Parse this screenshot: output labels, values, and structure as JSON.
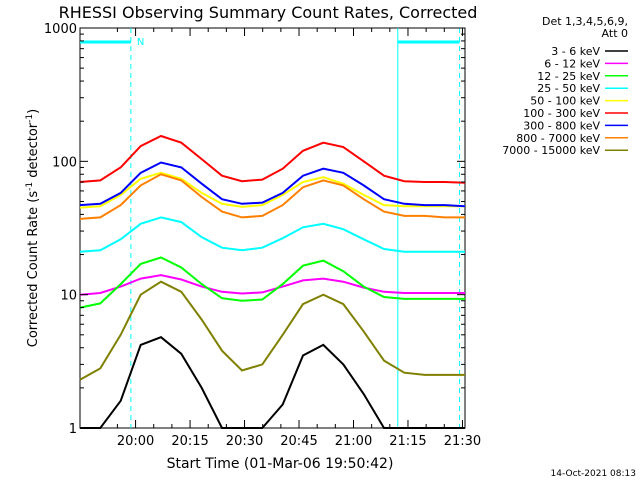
{
  "chart_data": {
    "type": "line",
    "title": "RHESSI Observing Summary Count Rates, Corrected",
    "xlabel": "Start Time (01-Mar-06 19:50:42)",
    "ylabel_parts": {
      "base": "Corrected Count Rate (s",
      "sup1": "-1",
      "mid": " detector",
      "sup2": "-1",
      "end": ")"
    },
    "y_scale": "log",
    "ylim": [
      1,
      1000
    ],
    "xlim_minutes": [
      -6,
      100
    ],
    "x_ticks": [
      {
        "label": "20:00",
        "minutes": 9.3
      },
      {
        "label": "20:15",
        "minutes": 24.3
      },
      {
        "label": "20:30",
        "minutes": 39.3
      },
      {
        "label": "20:45",
        "minutes": 54.3
      },
      {
        "label": "21:00",
        "minutes": 69.3
      },
      {
        "label": "21:15",
        "minutes": 84.3
      },
      {
        "label": "21:30",
        "minutes": 99.3
      }
    ],
    "y_ticks": [
      {
        "label": "1",
        "value": 1
      },
      {
        "label": "10",
        "value": 10
      },
      {
        "label": "100",
        "value": 100
      },
      {
        "label": "1000",
        "value": 1000
      }
    ],
    "legend_header": [
      "Det 1,3,4,5,6,9,",
      "Att 0"
    ],
    "series": [
      {
        "name": "3 - 6 keV",
        "color": "#000000",
        "values": [
          1,
          1,
          1.6,
          4.2,
          4.8,
          3.6,
          2.0,
          1,
          1,
          1,
          1.5,
          3.5,
          4.2,
          3.0,
          1.8,
          1,
          1,
          1,
          1,
          1
        ]
      },
      {
        "name": "6 - 12 keV",
        "color": "#ff00ff",
        "values": [
          10,
          10.3,
          11.5,
          13.2,
          14.0,
          13.0,
          11.5,
          10.5,
          10.2,
          10.4,
          11.5,
          12.8,
          13.2,
          12.5,
          11.3,
          10.5,
          10.3,
          10.3,
          10.3,
          10.3
        ]
      },
      {
        "name": "12 - 25 keV",
        "color": "#00ff00",
        "values": [
          8,
          8.6,
          12,
          17,
          19,
          16,
          12,
          9.4,
          9,
          9.2,
          12,
          16.5,
          18,
          15,
          11.5,
          9.6,
          9.3,
          9.3,
          9.3,
          9.3
        ]
      },
      {
        "name": "25 - 50 keV",
        "color": "#00ffff",
        "values": [
          21,
          21.5,
          26,
          34,
          38,
          35,
          27,
          22.5,
          21.5,
          22.5,
          26.5,
          32,
          34,
          31,
          26,
          22,
          21,
          21,
          21,
          21
        ]
      },
      {
        "name": "50 - 100 keV",
        "color": "#ffff00",
        "values": [
          45,
          46,
          56,
          74,
          82,
          74,
          58,
          48,
          45.5,
          47,
          56,
          70,
          76,
          68,
          56,
          47,
          46,
          46,
          46,
          46
        ]
      },
      {
        "name": "100 - 300 keV",
        "color": "#ff0000",
        "values": [
          70,
          72,
          90,
          130,
          155,
          138,
          104,
          78,
          71,
          73,
          88,
          120,
          138,
          128,
          100,
          78,
          71,
          70,
          70,
          69
        ]
      },
      {
        "name": "300 - 800 keV",
        "color": "#0000ff",
        "values": [
          47,
          48,
          58,
          82,
          98,
          90,
          68,
          52,
          48,
          49,
          58,
          78,
          88,
          82,
          66,
          52,
          48,
          47,
          47,
          46
        ]
      },
      {
        "name": "800 - 7000 keV",
        "color": "#ff8000",
        "values": [
          37,
          38,
          47,
          66,
          80,
          72,
          54,
          42,
          38,
          39,
          47,
          64,
          72,
          66,
          52,
          42,
          39,
          39,
          38,
          38
        ]
      },
      {
        "name": "7000 - 15000 keV",
        "color": "#808000",
        "values": [
          2.3,
          2.8,
          5,
          10,
          12.5,
          10.5,
          6.5,
          3.8,
          2.7,
          3.0,
          5,
          8.5,
          10,
          8.5,
          5.3,
          3.2,
          2.6,
          2.5,
          2.5,
          2.5
        ]
      }
    ],
    "series_x_minutes": [
      -6,
      -0.4,
      5.2,
      10.7,
      16.3,
      21.9,
      27.5,
      33.1,
      38.6,
      44.2,
      49.8,
      55.4,
      61.0,
      66.5,
      72.1,
      77.7,
      83.3,
      88.9,
      94.4,
      100
    ],
    "annotations": {
      "night_marker_label": "N",
      "night_segments_minutes": [
        [
          -6,
          8
        ],
        [
          81.5,
          98.5
        ]
      ],
      "saa_dashed_lines_minutes": [
        8,
        98.5
      ],
      "solid_boundary_minutes": [
        81.5
      ]
    },
    "timestamp": "14-Oct-2021 08:13"
  }
}
